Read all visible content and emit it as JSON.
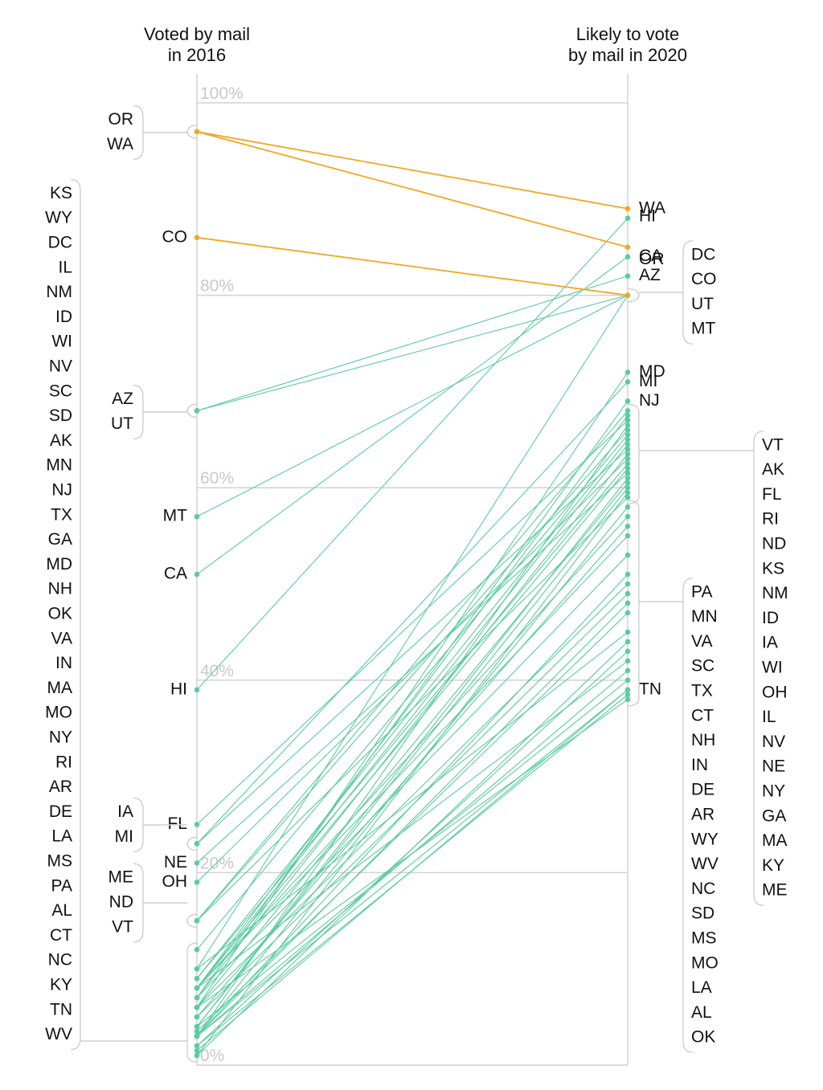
{
  "chart_data": {
    "type": "slope",
    "left_header": [
      "Voted by mail",
      "in 2016"
    ],
    "right_header": [
      "Likely to vote",
      "by mail in 2020"
    ],
    "ylim": [
      0,
      100
    ],
    "yticks": [
      "0%",
      "20%",
      "40%",
      "60%",
      "80%",
      "100%"
    ],
    "colors": {
      "highlight": "#f5a623",
      "default": "#5ccba0"
    },
    "highlighted_states": [
      "OR",
      "WA",
      "CO"
    ],
    "left_labels": {
      "single": [
        "CO",
        "MT",
        "CA",
        "HI",
        "FL",
        "NE",
        "OH"
      ],
      "groups": [
        [
          "OR",
          "WA"
        ],
        [
          "AZ",
          "UT"
        ],
        [
          "IA",
          "MI"
        ],
        [
          "ME",
          "ND",
          "VT"
        ],
        [
          "KS",
          "WY",
          "DC",
          "IL",
          "NM",
          "ID",
          "WI",
          "NV",
          "SC",
          "SD",
          "AK",
          "MN",
          "NJ",
          "TX",
          "GA",
          "MD",
          "NH",
          "OK",
          "VA",
          "IN",
          "MA",
          "MO",
          "NY",
          "RI",
          "AR",
          "DE",
          "LA",
          "MS",
          "PA",
          "AL",
          "CT",
          "NC",
          "KY",
          "TN",
          "WV"
        ]
      ]
    },
    "right_labels": {
      "single": [
        "WA",
        "HI",
        "OR",
        "CA",
        "AZ",
        "MD",
        "MI",
        "NJ",
        "TN"
      ],
      "groups": [
        [
          "DC",
          "CO",
          "UT",
          "MT"
        ],
        [
          "VT",
          "AK",
          "FL",
          "RI",
          "ND",
          "KS",
          "NM",
          "ID",
          "IA",
          "WI",
          "OH",
          "IL",
          "NV",
          "NE",
          "NY",
          "GA",
          "MA",
          "KY",
          "ME"
        ],
        [
          "PA",
          "MN",
          "VA",
          "SC",
          "TX",
          "CT",
          "NH",
          "IN",
          "DE",
          "AR",
          "WY",
          "WV",
          "NC",
          "SD",
          "MS",
          "MO",
          "LA",
          "AL",
          "OK"
        ]
      ]
    },
    "series": [
      {
        "state": "OR",
        "y2016": 97,
        "y2020": 85
      },
      {
        "state": "WA",
        "y2016": 97,
        "y2020": 89
      },
      {
        "state": "CO",
        "y2016": 86,
        "y2020": 80
      },
      {
        "state": "HI",
        "y2016": 39,
        "y2020": 88
      },
      {
        "state": "CA",
        "y2016": 51,
        "y2020": 84
      },
      {
        "state": "AZ",
        "y2016": 68,
        "y2020": 82
      },
      {
        "state": "UT",
        "y2016": 68,
        "y2020": 80
      },
      {
        "state": "MT",
        "y2016": 57,
        "y2020": 80
      },
      {
        "state": "DC",
        "y2016": 10,
        "y2020": 80
      },
      {
        "state": "MD",
        "y2016": 6,
        "y2020": 72
      },
      {
        "state": "MI",
        "y2016": 23,
        "y2020": 71
      },
      {
        "state": "NJ",
        "y2016": 7,
        "y2020": 69
      },
      {
        "state": "VT",
        "y2016": 15,
        "y2020": 68
      },
      {
        "state": "AK",
        "y2016": 8,
        "y2020": 67.5
      },
      {
        "state": "FL",
        "y2016": 25,
        "y2020": 67
      },
      {
        "state": "RI",
        "y2016": 3,
        "y2020": 66.5
      },
      {
        "state": "ND",
        "y2016": 15,
        "y2020": 66
      },
      {
        "state": "KS",
        "y2016": 12,
        "y2020": 65.5
      },
      {
        "state": "NM",
        "y2016": 9,
        "y2020": 65
      },
      {
        "state": "ID",
        "y2016": 8,
        "y2020": 64.5
      },
      {
        "state": "IA",
        "y2016": 23,
        "y2020": 64
      },
      {
        "state": "WI",
        "y2016": 7,
        "y2020": 63.5
      },
      {
        "state": "OH",
        "y2016": 19,
        "y2020": 63
      },
      {
        "state": "IL",
        "y2016": 9,
        "y2020": 62.5
      },
      {
        "state": "NV",
        "y2016": 8,
        "y2020": 62
      },
      {
        "state": "NE",
        "y2016": 21,
        "y2020": 61.5
      },
      {
        "state": "NY",
        "y2016": 4,
        "y2020": 61
      },
      {
        "state": "GA",
        "y2016": 6,
        "y2020": 60.5
      },
      {
        "state": "MA",
        "y2016": 4,
        "y2020": 60
      },
      {
        "state": "KY",
        "y2016": 1,
        "y2020": 59.5
      },
      {
        "state": "ME",
        "y2016": 15,
        "y2020": 59
      },
      {
        "state": "PA",
        "y2016": 3,
        "y2020": 58
      },
      {
        "state": "MN",
        "y2016": 8,
        "y2020": 57
      },
      {
        "state": "VA",
        "y2016": 5,
        "y2020": 56
      },
      {
        "state": "SC",
        "y2016": 8,
        "y2020": 55
      },
      {
        "state": "TX",
        "y2016": 7,
        "y2020": 53
      },
      {
        "state": "CT",
        "y2016": 3,
        "y2020": 51
      },
      {
        "state": "NH",
        "y2016": 6,
        "y2020": 50
      },
      {
        "state": "IN",
        "y2016": 5,
        "y2020": 49
      },
      {
        "state": "DE",
        "y2016": 3,
        "y2020": 48
      },
      {
        "state": "AR",
        "y2016": 3.5,
        "y2020": 47
      },
      {
        "state": "WY",
        "y2016": 10,
        "y2020": 45
      },
      {
        "state": "WV",
        "y2016": 1,
        "y2020": 44
      },
      {
        "state": "NC",
        "y2016": 2,
        "y2020": 43
      },
      {
        "state": "SD",
        "y2016": 8,
        "y2020": 42
      },
      {
        "state": "MS",
        "y2016": 3,
        "y2020": 41
      },
      {
        "state": "MO",
        "y2016": 4,
        "y2020": 40
      },
      {
        "state": "LA",
        "y2016": 3,
        "y2020": 39
      },
      {
        "state": "AL",
        "y2016": 2,
        "y2020": 38.5
      },
      {
        "state": "OK",
        "y2016": 6,
        "y2020": 38
      },
      {
        "state": "TN",
        "y2016": 1.5,
        "y2020": 39
      }
    ]
  }
}
